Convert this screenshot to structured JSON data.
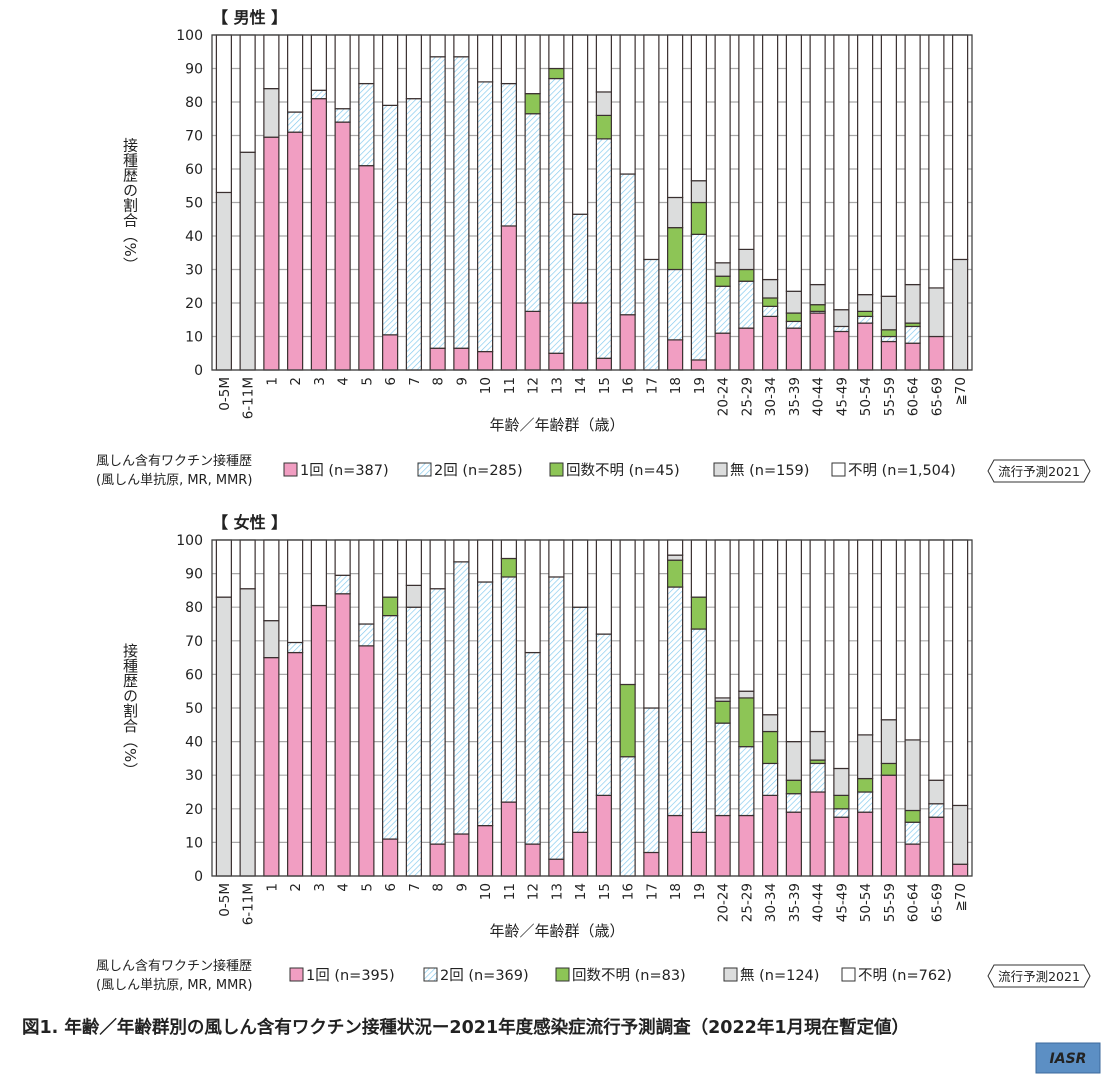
{
  "caption": "図1. 年齢／年齢群別の風しん含有ワクチン接種状況ー2021年度感染症流行予測調査（2022年1月現在暫定値）",
  "logo": "IASR",
  "colors": {
    "one": "#f19ec2",
    "two_line": "#7fc8ee",
    "unknown": "#8dc556",
    "none": "#dcdddd",
    "unknown_status": "#ffffff"
  },
  "chart_data": [
    {
      "type": "bar",
      "stacked": true,
      "title": "【 男性 】",
      "xlabel": "年齢／年齢群（歳）",
      "ylabel": "接種歴の割合（%）",
      "ylim": [
        0,
        100
      ],
      "yticks": [
        "0",
        "10",
        "20",
        "30",
        "40",
        "50",
        "60",
        "70",
        "80",
        "90",
        "100"
      ],
      "grid": true,
      "categories": [
        "0-5M",
        "6-11M",
        "1",
        "2",
        "3",
        "4",
        "5",
        "6",
        "7",
        "8",
        "9",
        "10",
        "11",
        "12",
        "13",
        "14",
        "15",
        "16",
        "17",
        "18",
        "19",
        "20-24",
        "25-29",
        "30-34",
        "35-39",
        "40-44",
        "45-49",
        "50-54",
        "55-59",
        "60-64",
        "65-69",
        "≧70"
      ],
      "legend_title": [
        "風しん含有ワクチン接種歴",
        "(風しん単抗原, MR, MMR)"
      ],
      "legend_tag": "流行予測2021",
      "series": [
        {
          "key": "one",
          "name": "1回 (n=387)",
          "values": [
            0,
            0,
            69.5,
            71,
            81,
            74,
            61,
            10.5,
            0,
            6.5,
            6.5,
            5.5,
            43,
            17.5,
            5,
            20,
            3.5,
            16.5,
            0,
            9,
            3,
            11,
            12.5,
            16,
            12.5,
            17,
            11.5,
            14,
            8.5,
            8,
            10,
            0
          ]
        },
        {
          "key": "two",
          "name": "2回 (n=285)",
          "values": [
            0,
            0,
            0,
            6,
            2.5,
            4,
            24.5,
            68.5,
            81,
            87,
            87,
            80.5,
            42.5,
            59,
            82,
            26.5,
            65.5,
            42,
            33,
            21,
            37.5,
            14,
            14,
            3,
            2,
            0.5,
            1.5,
            2,
            1.5,
            5,
            0,
            0
          ]
        },
        {
          "key": "unknown",
          "name": "回数不明 (n=45)",
          "values": [
            0,
            0,
            0,
            0,
            0,
            0,
            0,
            0,
            0,
            0,
            0,
            0,
            0,
            6,
            3,
            0,
            7,
            0,
            0,
            12.5,
            9.5,
            3,
            3.5,
            2.5,
            2.5,
            2,
            0,
            1.5,
            2,
            1,
            0,
            0
          ]
        },
        {
          "key": "none",
          "name": "無 (n=159)",
          "values": [
            53,
            65,
            14.5,
            0,
            0,
            0,
            0,
            0,
            0,
            0,
            0,
            0,
            0,
            0,
            0,
            0,
            7,
            0,
            0,
            9,
            6.5,
            4,
            6,
            5.5,
            6.5,
            6,
            5,
            5,
            10,
            11.5,
            14.5,
            33
          ]
        },
        {
          "key": "unknown_status",
          "name": "不明 (n=1,504)",
          "values": "remainder"
        }
      ]
    },
    {
      "type": "bar",
      "stacked": true,
      "title": "【 女性 】",
      "xlabel": "年齢／年齢群（歳）",
      "ylabel": "接種歴の割合（%）",
      "ylim": [
        0,
        100
      ],
      "yticks": [
        "0",
        "10",
        "20",
        "30",
        "40",
        "50",
        "60",
        "70",
        "80",
        "90",
        "100"
      ],
      "grid": true,
      "categories": [
        "0-5M",
        "6-11M",
        "1",
        "2",
        "3",
        "4",
        "5",
        "6",
        "7",
        "8",
        "9",
        "10",
        "11",
        "12",
        "13",
        "14",
        "15",
        "16",
        "17",
        "18",
        "19",
        "20-24",
        "25-29",
        "30-34",
        "35-39",
        "40-44",
        "45-49",
        "50-54",
        "55-59",
        "60-64",
        "65-69",
        "≧70"
      ],
      "legend_title": [
        "風しん含有ワクチン接種歴",
        "(風しん単抗原, MR, MMR)"
      ],
      "legend_tag": "流行予測2021",
      "series": [
        {
          "key": "one",
          "name": "1回 (n=395)",
          "values": [
            0,
            0,
            65,
            66.5,
            80.5,
            84,
            68.5,
            11,
            0,
            9.5,
            12.5,
            15,
            22,
            9.5,
            5,
            13,
            24,
            0,
            7,
            18,
            13,
            18,
            18,
            24,
            19,
            25,
            17.5,
            19,
            30,
            9.5,
            17.5,
            3.5
          ]
        },
        {
          "key": "two",
          "name": "2回 (n=369)",
          "values": [
            0,
            0,
            0,
            3,
            0,
            5.5,
            6.5,
            66.5,
            80,
            76,
            81,
            72.5,
            67,
            57,
            84,
            67,
            48,
            35.5,
            43,
            68,
            60.5,
            27.5,
            20.5,
            9.5,
            5.5,
            8.5,
            2.5,
            6,
            0,
            6.5,
            4,
            0
          ]
        },
        {
          "key": "unknown",
          "name": "回数不明 (n=83)",
          "values": [
            0,
            0,
            0,
            0,
            0,
            0,
            0,
            5.5,
            0,
            0,
            0,
            0,
            5.5,
            0,
            0,
            0,
            0,
            21.5,
            0,
            8,
            9.5,
            6.5,
            14.5,
            9.5,
            4,
            1,
            4,
            4,
            3.5,
            3.5,
            0,
            0
          ]
        },
        {
          "key": "none",
          "name": "無 (n=124)",
          "values": [
            83,
            85.5,
            11,
            0,
            0,
            0,
            0,
            0,
            6.5,
            0,
            0,
            0,
            0,
            0,
            0,
            0,
            0,
            0,
            0,
            1.5,
            0,
            1,
            2,
            5,
            11.5,
            8.5,
            8,
            13,
            13,
            21,
            7,
            17.5
          ]
        },
        {
          "key": "unknown_status",
          "name": "不明 (n=762)",
          "values": "remainder"
        }
      ]
    }
  ]
}
